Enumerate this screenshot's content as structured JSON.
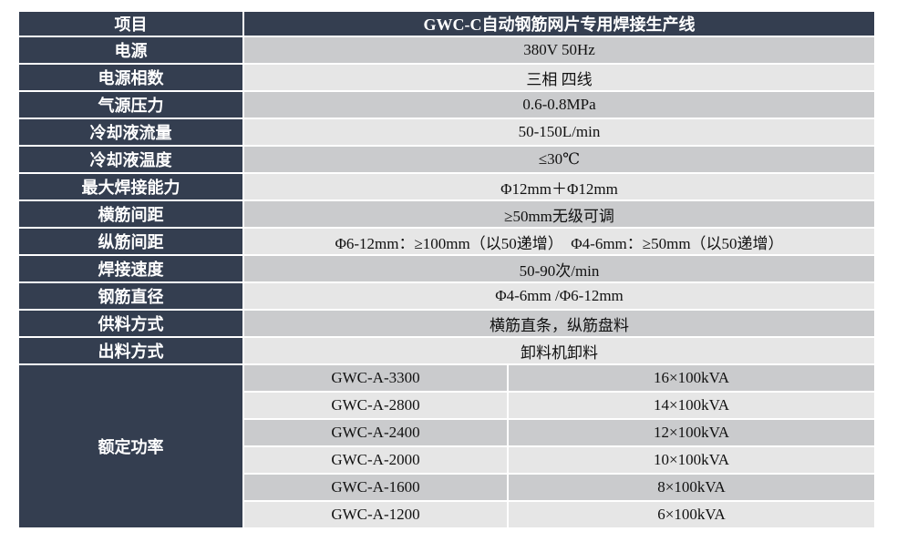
{
  "header": {
    "item": "项目",
    "product": "GWC-C自动钢筋网片专用焊接生产线"
  },
  "rows": [
    {
      "label": "电源",
      "value": "380V 50Hz"
    },
    {
      "label": "电源相数",
      "value": "三相 四线"
    },
    {
      "label": "气源压力",
      "value": "0.6-0.8MPa"
    },
    {
      "label": "冷却液流量",
      "value": "50-150L/min"
    },
    {
      "label": "冷却液温度",
      "value": "≤30℃"
    },
    {
      "label": "最大焊接能力",
      "value": "Φ12mm＋Φ12mm"
    },
    {
      "label": "横筋间距",
      "value": "≥50mm无级可调"
    },
    {
      "label": "纵筋间距",
      "value": "Φ6-12mm：≥100mm（以50递增）  Φ4-6mm：≥50mm（以50递增）"
    },
    {
      "label": "焊接速度",
      "value": "50-90次/min"
    },
    {
      "label": "钢筋直径",
      "value": "Φ4-6mm /Φ6-12mm"
    },
    {
      "label": "供料方式",
      "value": "横筋直条，纵筋盘料"
    },
    {
      "label": "出料方式",
      "value": "卸料机卸料"
    }
  ],
  "power": {
    "label": "额定功率",
    "models": [
      {
        "model": "GWC-A-3300",
        "power": "16×100kVA"
      },
      {
        "model": "GWC-A-2800",
        "power": "14×100kVA"
      },
      {
        "model": "GWC-A-2400",
        "power": "12×100kVA"
      },
      {
        "model": "GWC-A-2000",
        "power": "10×100kVA"
      },
      {
        "model": "GWC-A-1600",
        "power": "8×100kVA"
      },
      {
        "model": "GWC-A-1200",
        "power": "6×100kVA"
      }
    ]
  },
  "colors": {
    "header": "#343e50",
    "row_dark": "#cacbcd",
    "row_light": "#e6e6e6"
  }
}
